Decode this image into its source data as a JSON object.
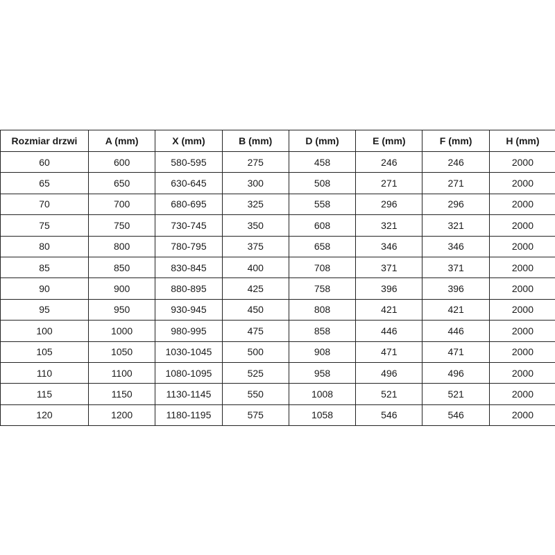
{
  "table": {
    "headers": [
      "Rozmiar drzwi",
      "A (mm)",
      "X (mm)",
      "B (mm)",
      "D (mm)",
      "E (mm)",
      "F (mm)",
      "H (mm)"
    ],
    "rows": [
      [
        "60",
        "600",
        "580-595",
        "275",
        "458",
        "246",
        "246",
        "2000"
      ],
      [
        "65",
        "650",
        "630-645",
        "300",
        "508",
        "271",
        "271",
        "2000"
      ],
      [
        "70",
        "700",
        "680-695",
        "325",
        "558",
        "296",
        "296",
        "2000"
      ],
      [
        "75",
        "750",
        "730-745",
        "350",
        "608",
        "321",
        "321",
        "2000"
      ],
      [
        "80",
        "800",
        "780-795",
        "375",
        "658",
        "346",
        "346",
        "2000"
      ],
      [
        "85",
        "850",
        "830-845",
        "400",
        "708",
        "371",
        "371",
        "2000"
      ],
      [
        "90",
        "900",
        "880-895",
        "425",
        "758",
        "396",
        "396",
        "2000"
      ],
      [
        "95",
        "950",
        "930-945",
        "450",
        "808",
        "421",
        "421",
        "2000"
      ],
      [
        "100",
        "1000",
        "980-995",
        "475",
        "858",
        "446",
        "446",
        "2000"
      ],
      [
        "105",
        "1050",
        "1030-1045",
        "500",
        "908",
        "471",
        "471",
        "2000"
      ],
      [
        "110",
        "1100",
        "1080-1095",
        "525",
        "958",
        "496",
        "496",
        "2000"
      ],
      [
        "115",
        "1150",
        "1130-1145",
        "550",
        "1008",
        "521",
        "521",
        "2000"
      ],
      [
        "120",
        "1200",
        "1180-1195",
        "575",
        "1058",
        "546",
        "546",
        "2000"
      ]
    ]
  }
}
